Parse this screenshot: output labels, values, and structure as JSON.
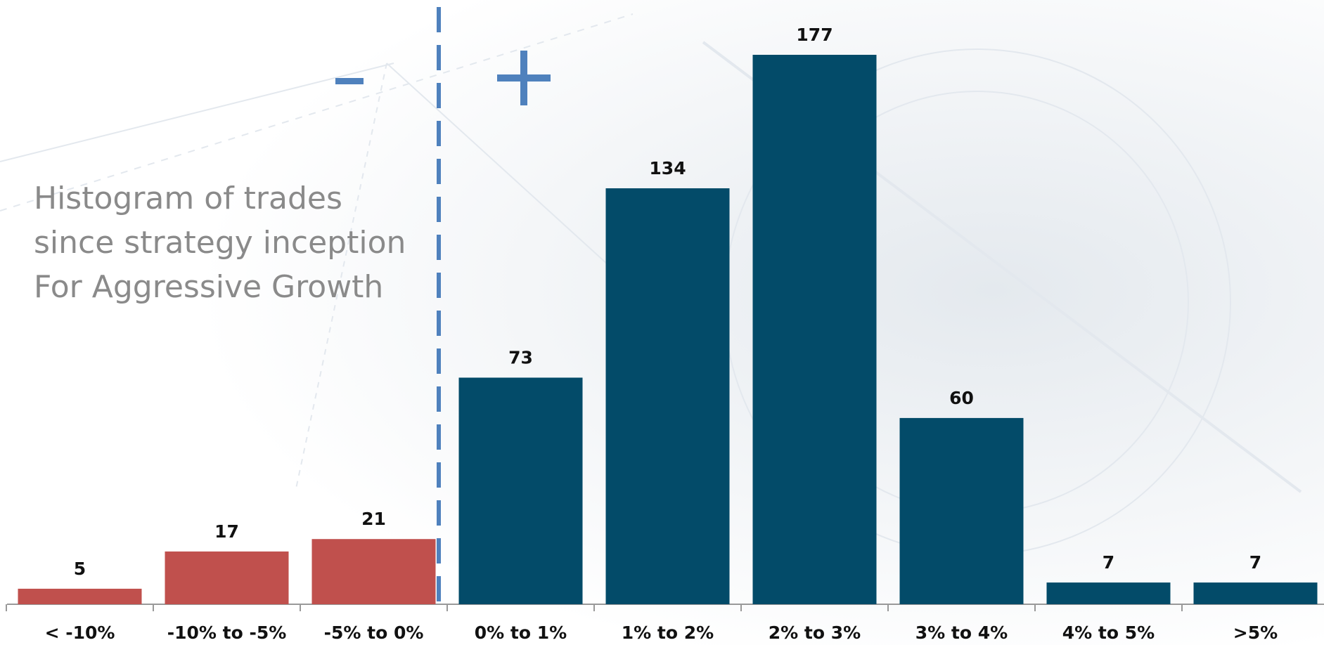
{
  "chart_data": {
    "type": "bar",
    "title_lines": [
      "Histogram of trades",
      "since strategy inception",
      "For Aggressive Growth"
    ],
    "categories": [
      "< -10%",
      "-10% to -5%",
      "-5% to 0%",
      "0% to 1%",
      "1% to 2%",
      "2% to 3%",
      "3% to 4%",
      "4% to 5%",
      ">5%"
    ],
    "values": [
      5,
      17,
      21,
      73,
      134,
      177,
      60,
      7,
      7
    ],
    "colors": [
      "#c0504d",
      "#c0504d",
      "#c0504d",
      "#034b69",
      "#034b69",
      "#034b69",
      "#034b69",
      "#034b69",
      "#034b69"
    ]
  }
}
